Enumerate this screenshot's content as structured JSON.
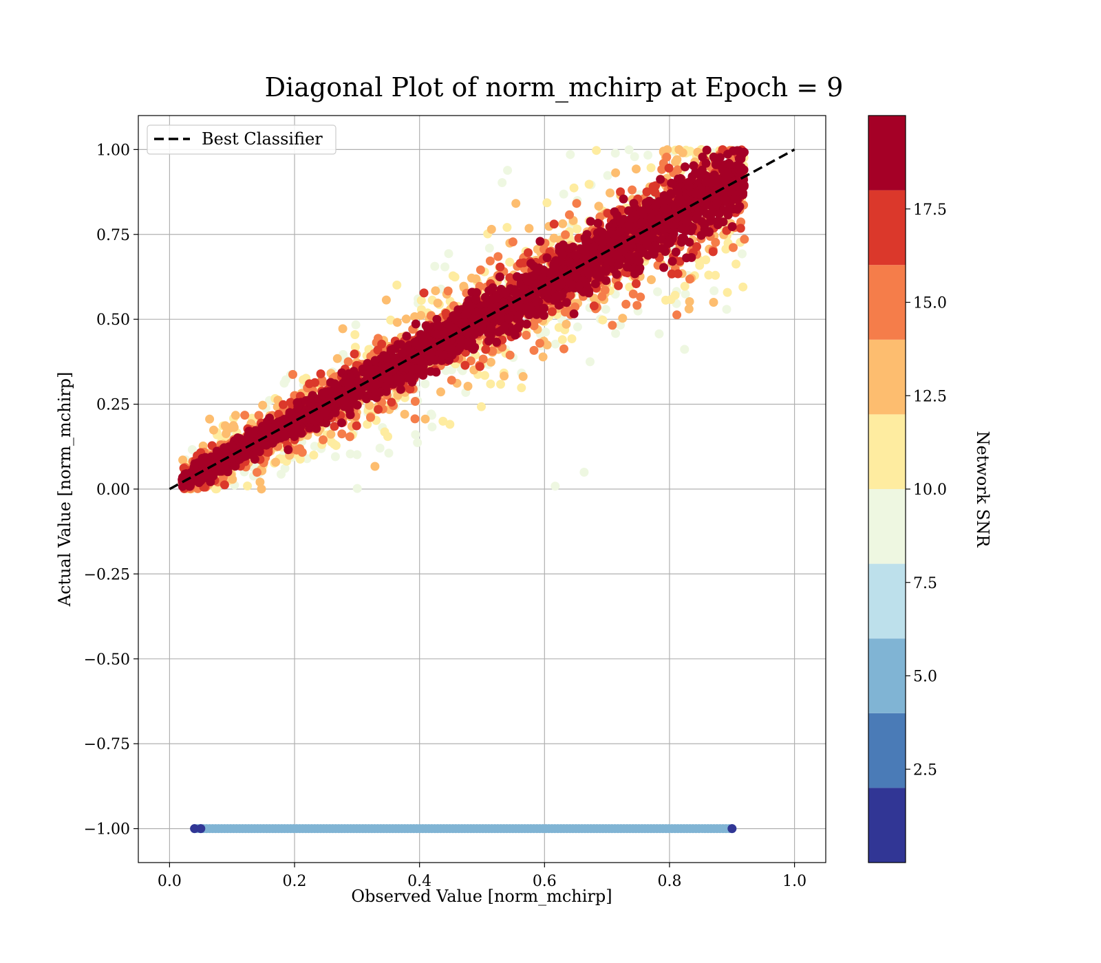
{
  "chart_data": {
    "type": "scatter",
    "title": "Diagonal Plot of norm_mchirp at Epoch = 9",
    "xlabel": "Observed Value [norm_mchirp]",
    "ylabel": "Actual Value [norm_mchirp]",
    "xlim": [
      -0.05,
      1.05
    ],
    "ylim": [
      -1.1,
      1.1
    ],
    "grid": true,
    "xticks": [
      0.0,
      0.2,
      0.4,
      0.6,
      0.8,
      1.0
    ],
    "xtick_labels": [
      "0.0",
      "0.2",
      "0.4",
      "0.6",
      "0.8",
      "1.0"
    ],
    "yticks": [
      1.0,
      0.75,
      0.5,
      0.25,
      0.0,
      -0.25,
      -0.5,
      -0.75,
      -1.0
    ],
    "ytick_labels": [
      "1.00",
      "0.75",
      "0.50",
      "0.25",
      "0.00",
      "−0.25",
      "−0.50",
      "−0.75",
      "−1.00"
    ],
    "legend": {
      "placement": "top-left",
      "entries": [
        {
          "label": "Best Classifier",
          "style": "dashed",
          "color": "#000000"
        }
      ]
    },
    "reference_line": {
      "x": [
        0.0,
        1.0
      ],
      "y": [
        0.0,
        1.0
      ]
    },
    "scatter_description": {
      "color_variable": "Network SNR",
      "main_cloud": {
        "x_range": [
          0.02,
          0.92
        ],
        "y_range": [
          0.0,
          1.0
        ],
        "trend": "y approximately equal to x",
        "high_snr_spread": 0.05,
        "low_snr_spread": 0.15
      },
      "invalid_band": {
        "y": -1.0,
        "x_range": [
          0.04,
          0.9
        ],
        "color": "#80b4d4"
      }
    },
    "colorbar": {
      "label": "Network SNR",
      "range": [
        0.0,
        20.0
      ],
      "boundaries": [
        0,
        2.0,
        4.0,
        6.0,
        8.0,
        10.0,
        12.0,
        14.0,
        16.0,
        18.0,
        20.0
      ],
      "colors": [
        "#313695",
        "#4a7bb7",
        "#80b4d4",
        "#bde0eb",
        "#eef7e1",
        "#feeca0",
        "#fdbd6f",
        "#f57d4a",
        "#db382b",
        "#a50026"
      ],
      "ticks": [
        2.5,
        5.0,
        7.5,
        10.0,
        12.5,
        15.0,
        17.5
      ],
      "tick_labels": [
        "2.5",
        "5.0",
        "7.5",
        "10.0",
        "12.5",
        "15.0",
        "17.5"
      ]
    }
  }
}
